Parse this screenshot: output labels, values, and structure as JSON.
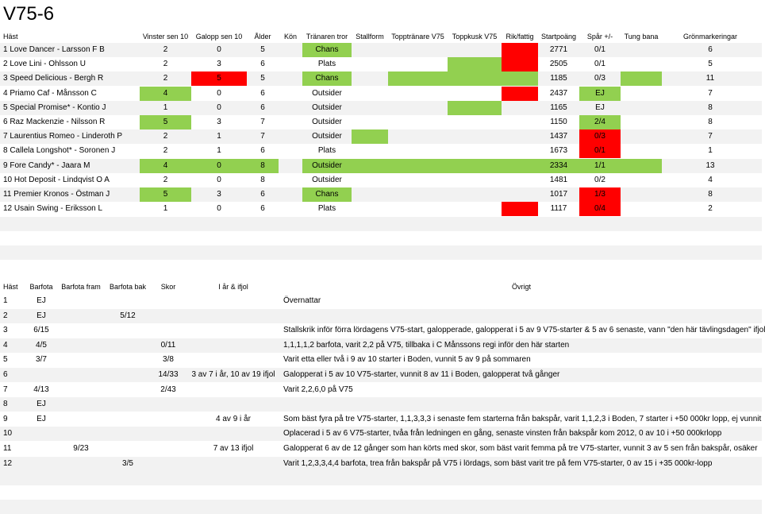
{
  "title": "V75-6",
  "colors": {
    "green": "#92d050",
    "red": "#ff0000",
    "band": "#f2f2f2"
  },
  "table1": {
    "headers": [
      "Häst",
      "Vinster sen 10",
      "Galopp sen 10",
      "Ålder",
      "Kön",
      "Tränaren tror",
      "Stallform",
      "Topptränare V75",
      "Toppkusk V75",
      "Rik/fattig",
      "Startpoäng",
      "Spår +/-",
      "Tung bana",
      "Grönmarkeringar"
    ],
    "rows": [
      {
        "horse": "1 Love Dancer - Larsson F B",
        "wins": "2",
        "gallop": "0",
        "age": "5",
        "sex": "",
        "tror": "Chans",
        "startp": "2771",
        "spar": "0/1",
        "gron": "6",
        "hl": {
          "wins": "",
          "gallop": "",
          "age": "",
          "tror": "g",
          "stallform": "",
          "topptr": "",
          "toppk": "",
          "rik": "r",
          "startp": "",
          "spar": "",
          "tung": ""
        }
      },
      {
        "horse": "2 Love Lini - Ohlsson U",
        "wins": "2",
        "gallop": "3",
        "age": "6",
        "sex": "",
        "tror": "Plats",
        "startp": "2505",
        "spar": "0/1",
        "gron": "5",
        "hl": {
          "wins": "",
          "gallop": "",
          "age": "",
          "tror": "",
          "stallform": "",
          "topptr": "",
          "toppk": "g",
          "rik": "r",
          "startp": "",
          "spar": "",
          "tung": ""
        }
      },
      {
        "horse": "3 Speed Delicious - Bergh R",
        "wins": "2",
        "gallop": "5",
        "age": "5",
        "sex": "",
        "tror": "Chans",
        "startp": "1185",
        "spar": "0/3",
        "gron": "11",
        "hl": {
          "wins": "",
          "gallop": "r",
          "age": "",
          "tror": "g",
          "stallform": "",
          "topptr": "g",
          "toppk": "g",
          "rik": "g",
          "startp": "",
          "spar": "",
          "tung": "g"
        }
      },
      {
        "horse": "4 Priamo Caf - Månsson C",
        "wins": "4",
        "gallop": "0",
        "age": "6",
        "sex": "",
        "tror": "Outsider",
        "startp": "2437",
        "spar": "EJ",
        "gron": "7",
        "hl": {
          "wins": "g",
          "gallop": "",
          "age": "",
          "tror": "",
          "stallform": "",
          "topptr": "",
          "toppk": "",
          "rik": "r",
          "startp": "",
          "spar": "g",
          "tung": ""
        }
      },
      {
        "horse": "5 Special Promise* - Kontio J",
        "wins": "1",
        "gallop": "0",
        "age": "6",
        "sex": "",
        "tror": "Outsider",
        "startp": "1165",
        "spar": "EJ",
        "gron": "8",
        "hl": {
          "wins": "",
          "gallop": "",
          "age": "",
          "tror": "",
          "stallform": "",
          "topptr": "",
          "toppk": "g",
          "rik": "",
          "startp": "",
          "spar": "",
          "tung": ""
        }
      },
      {
        "horse": "6 Raz Mackenzie - Nilsson R",
        "wins": "5",
        "gallop": "3",
        "age": "7",
        "sex": "",
        "tror": "Outsider",
        "startp": "1150",
        "spar": "2/4",
        "gron": "8",
        "hl": {
          "wins": "g",
          "gallop": "",
          "age": "",
          "tror": "",
          "stallform": "",
          "topptr": "",
          "toppk": "",
          "rik": "",
          "startp": "",
          "spar": "g",
          "tung": ""
        }
      },
      {
        "horse": "7 Laurentius Romeo - Linderoth P",
        "wins": "2",
        "gallop": "1",
        "age": "7",
        "sex": "",
        "tror": "Outsider",
        "startp": "1437",
        "spar": "0/3",
        "gron": "7",
        "hl": {
          "wins": "",
          "gallop": "",
          "age": "",
          "tror": "",
          "stallform": "g",
          "topptr": "",
          "toppk": "",
          "rik": "",
          "startp": "",
          "spar": "r",
          "tung": ""
        }
      },
      {
        "horse": "8 Callela Longshot* - Soronen J",
        "wins": "2",
        "gallop": "1",
        "age": "6",
        "sex": "",
        "tror": "Plats",
        "startp": "1673",
        "spar": "0/1",
        "gron": "1",
        "hl": {
          "wins": "",
          "gallop": "",
          "age": "",
          "tror": "",
          "stallform": "",
          "topptr": "",
          "toppk": "",
          "rik": "",
          "startp": "",
          "spar": "r",
          "tung": ""
        }
      },
      {
        "horse": "9 Fore Candy* - Jaara M",
        "wins": "4",
        "gallop": "0",
        "age": "8",
        "sex": "",
        "tror": "Outsider",
        "startp": "2334",
        "spar": "1/1",
        "gron": "13",
        "hl": {
          "wins": "g",
          "gallop": "g",
          "age": "g",
          "tror": "g",
          "stallform": "g",
          "topptr": "g",
          "toppk": "g",
          "rik": "g",
          "startp": "g",
          "spar": "g",
          "tung": "g"
        }
      },
      {
        "horse": "10 Hot Deposit - Lindqvist O A",
        "wins": "2",
        "gallop": "0",
        "age": "8",
        "sex": "",
        "tror": "Outsider",
        "startp": "1481",
        "spar": "0/2",
        "gron": "4",
        "hl": {
          "wins": "",
          "gallop": "",
          "age": "",
          "tror": "",
          "stallform": "",
          "topptr": "",
          "toppk": "",
          "rik": "",
          "startp": "",
          "spar": "",
          "tung": ""
        }
      },
      {
        "horse": "11 Premier Kronos - Östman J",
        "wins": "5",
        "gallop": "3",
        "age": "6",
        "sex": "",
        "tror": "Chans",
        "startp": "1017",
        "spar": "1/3",
        "gron": "8",
        "hl": {
          "wins": "g",
          "gallop": "",
          "age": "",
          "tror": "g",
          "stallform": "",
          "topptr": "",
          "toppk": "",
          "rik": "",
          "startp": "",
          "spar": "r",
          "tung": ""
        }
      },
      {
        "horse": "12 Usain Swing - Eriksson L",
        "wins": "1",
        "gallop": "0",
        "age": "6",
        "sex": "",
        "tror": "Plats",
        "startp": "1117",
        "spar": "0/4",
        "gron": "2",
        "hl": {
          "wins": "",
          "gallop": "",
          "age": "",
          "tror": "",
          "stallform": "",
          "topptr": "",
          "toppk": "",
          "rik": "r",
          "startp": "",
          "spar": "r",
          "tung": ""
        }
      }
    ]
  },
  "table2": {
    "headers": [
      "Häst",
      "Barfota",
      "Barfota fram",
      "Barfota bak",
      "Skor",
      "I år & ifjol",
      "Övrigt"
    ],
    "rows": [
      {
        "h": "1",
        "barfota": "EJ",
        "fram": "",
        "bak": "",
        "skor": "",
        "iar": "",
        "ovrigt": "Övernattar"
      },
      {
        "h": "2",
        "barfota": "EJ",
        "fram": "",
        "bak": "5/12",
        "skor": "",
        "iar": "",
        "ovrigt": ""
      },
      {
        "h": "3",
        "barfota": "6/15",
        "fram": "",
        "bak": "",
        "skor": "",
        "iar": "",
        "ovrigt": "Stallskrik inför förra lördagens V75-start, galopperade, galopperat i 5 av 9 V75-starter & 5 av 6 senaste, vann \"den här tävlingsdagen\" ifjol"
      },
      {
        "h": "4",
        "barfota": "4/5",
        "fram": "",
        "bak": "",
        "skor": "0/11",
        "iar": "",
        "ovrigt": "1,1,1,1,2 barfota, varit 2,2 på V75, tillbaka i C Månssons regi inför den här starten"
      },
      {
        "h": "5",
        "barfota": "3/7",
        "fram": "",
        "bak": "",
        "skor": "3/8",
        "iar": "",
        "ovrigt": "Varit etta eller två i 9 av 10 starter i Boden, vunnit 5 av 9 på sommaren"
      },
      {
        "h": "6",
        "barfota": "",
        "fram": "",
        "bak": "",
        "skor": "14/33",
        "iar": "3 av 7 i år, 10 av 19 ifjol",
        "ovrigt": "Galopperat i 5 av 10 V75-starter, vunnit 8 av 11 i Boden, galopperat två gånger"
      },
      {
        "h": "7",
        "barfota": "4/13",
        "fram": "",
        "bak": "",
        "skor": "2/43",
        "iar": "",
        "ovrigt": "Varit 2,2,6,0 på V75"
      },
      {
        "h": "8",
        "barfota": "EJ",
        "fram": "",
        "bak": "",
        "skor": "",
        "iar": "",
        "ovrigt": ""
      },
      {
        "h": "9",
        "barfota": "EJ",
        "fram": "",
        "bak": "",
        "skor": "",
        "iar": "4 av 9 i år",
        "ovrigt": "Som bäst fyra på tre V75-starter, 1,1,3,3,3 i senaste fem starterna från bakspår, varit 1,1,2,3 i Boden, 7 starter i +50 000kr lopp, ej vunnit"
      },
      {
        "h": "10",
        "barfota": "",
        "fram": "",
        "bak": "",
        "skor": "",
        "iar": "",
        "ovrigt": "Oplacerad i 5 av 6 V75-starter, tvåa från ledningen en gång, senaste vinsten från bakspår kom 2012, 0 av 10 i +50 000krlopp"
      },
      {
        "h": "11",
        "barfota": "",
        "fram": "9/23",
        "bak": "",
        "skor": "",
        "iar": "7 av 13 ifjol",
        "ovrigt": "Galopperat 6 av de 12 gånger som han körts med skor, som bäst varit femma på tre V75-starter, vunnit 3 av 5 sen från bakspår, osäker"
      },
      {
        "h": "12",
        "barfota": "",
        "fram": "",
        "bak": "3/5",
        "skor": "",
        "iar": "",
        "ovrigt": "Varit 1,2,3,3,4,4 barfota, trea från bakspår på V75 i lördags, som bäst varit tre på fem V75-starter, 0 av 15 i +35 000kr-lopp"
      }
    ]
  }
}
